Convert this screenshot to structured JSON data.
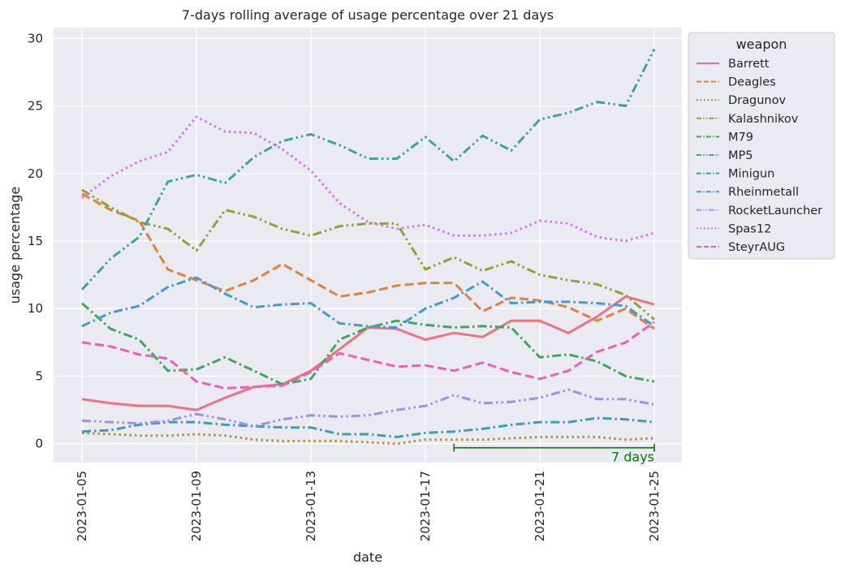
{
  "chart_data": {
    "type": "line",
    "title": "7-days rolling average of usage percentage over 21 days",
    "xlabel": "date",
    "ylabel": "usage percentage",
    "ylim": [
      -1.4,
      30.8
    ],
    "yticks": [
      0,
      5,
      10,
      15,
      20,
      25,
      30
    ],
    "xticks": [
      "2023-01-05",
      "2023-01-09",
      "2023-01-13",
      "2023-01-17",
      "2023-01-21",
      "2023-01-25"
    ],
    "x": [
      "2023-01-05",
      "2023-01-06",
      "2023-01-07",
      "2023-01-08",
      "2023-01-09",
      "2023-01-10",
      "2023-01-11",
      "2023-01-12",
      "2023-01-13",
      "2023-01-14",
      "2023-01-15",
      "2023-01-16",
      "2023-01-17",
      "2023-01-18",
      "2023-01-19",
      "2023-01-20",
      "2023-01-21",
      "2023-01-22",
      "2023-01-23",
      "2023-01-24",
      "2023-01-25"
    ],
    "grid": true,
    "legend": {
      "title": "weapon",
      "placement": "outside-top-right"
    },
    "annotation": {
      "label": "7 days",
      "from": "2023-01-18",
      "to": "2023-01-25",
      "y": -0.3,
      "color": "#008000"
    },
    "series": [
      {
        "name": "Barrett",
        "color": "#f2707f",
        "dash": "solid",
        "values": [
          3.3,
          3.0,
          2.8,
          2.8,
          2.5,
          3.4,
          4.2,
          4.4,
          5.4,
          7.0,
          8.6,
          8.5,
          7.7,
          8.2,
          7.9,
          9.1,
          9.1,
          8.2,
          9.4,
          10.9,
          10.3
        ]
      },
      {
        "name": "Deagles",
        "color": "#e0843a",
        "dash": "dashed",
        "values": [
          18.5,
          17.3,
          16.5,
          12.9,
          12.1,
          11.3,
          12.1,
          13.3,
          12.1,
          10.9,
          11.2,
          11.7,
          11.9,
          11.9,
          9.8,
          10.8,
          10.6,
          10.1,
          9.1,
          10.0,
          8.5
        ]
      },
      {
        "name": "Dragunov",
        "color": "#b7912c",
        "dash": "dotted",
        "values": [
          0.8,
          0.7,
          0.6,
          0.6,
          0.7,
          0.6,
          0.3,
          0.2,
          0.2,
          0.2,
          0.1,
          0.0,
          0.3,
          0.3,
          0.3,
          0.4,
          0.5,
          0.5,
          0.5,
          0.3,
          0.4
        ]
      },
      {
        "name": "Kalashnikov",
        "color": "#93a32e",
        "dash": "dashdotdot",
        "values": [
          18.8,
          17.5,
          16.4,
          15.9,
          14.3,
          17.3,
          16.8,
          15.9,
          15.4,
          16.1,
          16.3,
          16.3,
          12.9,
          13.8,
          12.8,
          13.5,
          12.5,
          12.1,
          11.8,
          11.0,
          9.2
        ]
      },
      {
        "name": "M79",
        "color": "#35ad5b",
        "dash": "dashdot",
        "values": [
          10.4,
          8.5,
          7.7,
          5.4,
          5.5,
          6.4,
          5.4,
          4.4,
          4.8,
          7.7,
          8.6,
          9.1,
          8.8,
          8.6,
          8.7,
          8.6,
          6.4,
          6.6,
          6.1,
          5.0,
          4.6
        ]
      },
      {
        "name": "MP5",
        "color": "#36ab90",
        "dash": "dashdotdot",
        "values": [
          11.4,
          13.7,
          15.3,
          19.4,
          19.9,
          19.3,
          21.2,
          22.4,
          22.9,
          22.1,
          21.1,
          21.1,
          22.7,
          20.9,
          22.8,
          21.7,
          24.0,
          24.5,
          25.3,
          25.0,
          29.2
        ]
      },
      {
        "name": "Minigun",
        "color": "#37a3ae",
        "dash": "dashdot",
        "values": [
          0.9,
          1.0,
          1.4,
          1.6,
          1.6,
          1.4,
          1.3,
          1.2,
          1.2,
          0.7,
          0.7,
          0.5,
          0.8,
          0.9,
          1.1,
          1.4,
          1.6,
          1.6,
          1.9,
          1.8,
          1.6
        ]
      },
      {
        "name": "Rheinmetall",
        "color": "#3ba0cf",
        "dash": "dashdot",
        "values": [
          8.7,
          9.7,
          10.2,
          11.6,
          12.3,
          11.1,
          10.1,
          10.3,
          10.4,
          8.9,
          8.7,
          8.6,
          10.0,
          10.8,
          12.0,
          10.4,
          10.5,
          10.5,
          10.4,
          10.2,
          8.7
        ]
      },
      {
        "name": "RocketLauncher",
        "color": "#9a93e9",
        "dash": "dashdotdot",
        "values": [
          1.7,
          1.6,
          1.5,
          1.7,
          2.2,
          1.8,
          1.3,
          1.8,
          2.1,
          2.0,
          2.1,
          2.5,
          2.8,
          3.6,
          3.0,
          3.1,
          3.4,
          4.0,
          3.3,
          3.3,
          2.9
        ]
      },
      {
        "name": "Spas12",
        "color": "#df74e6",
        "dash": "dotted",
        "values": [
          18.2,
          19.8,
          20.9,
          21.6,
          24.2,
          23.1,
          23.0,
          21.8,
          20.2,
          17.8,
          16.4,
          15.9,
          16.2,
          15.4,
          15.4,
          15.6,
          16.5,
          16.3,
          15.3,
          15.0,
          15.6
        ]
      },
      {
        "name": "SteyrAUG",
        "color": "#f05fb0",
        "dash": "dashed",
        "values": [
          7.5,
          7.2,
          6.6,
          6.3,
          4.6,
          4.1,
          4.2,
          4.3,
          5.3,
          6.7,
          6.2,
          5.7,
          5.8,
          5.4,
          6.0,
          5.3,
          4.8,
          5.4,
          6.8,
          7.5,
          9.0
        ]
      }
    ]
  }
}
